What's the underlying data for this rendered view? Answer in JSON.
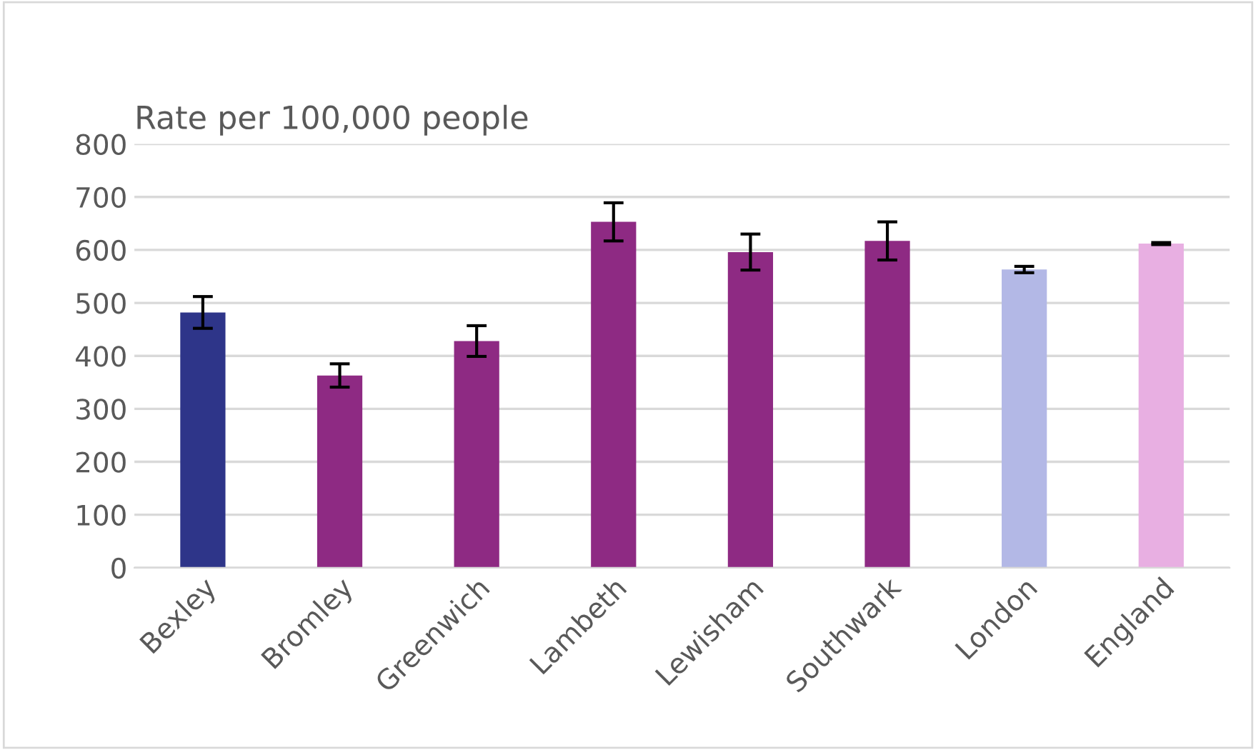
{
  "chart_data": {
    "type": "bar",
    "ylabel": "Rate per 100,000 people",
    "categories": [
      "Bexley",
      "Bromley",
      "Greenwich",
      "Lambeth",
      "Lewisham",
      "Southwark",
      "London",
      "England"
    ],
    "values": [
      482,
      363,
      428,
      653,
      596,
      617,
      563,
      612
    ],
    "errors": [
      30,
      22,
      29,
      36,
      34,
      36,
      6,
      2
    ],
    "colors": [
      "#2e3589",
      "#8e2a83",
      "#8e2a83",
      "#8e2a83",
      "#8e2a83",
      "#8e2a83",
      "#b3b8e6",
      "#e8afe2"
    ],
    "ylim": [
      0,
      800
    ],
    "yticks": [
      0,
      100,
      200,
      300,
      400,
      500,
      600,
      700,
      800
    ],
    "grid": "y"
  }
}
